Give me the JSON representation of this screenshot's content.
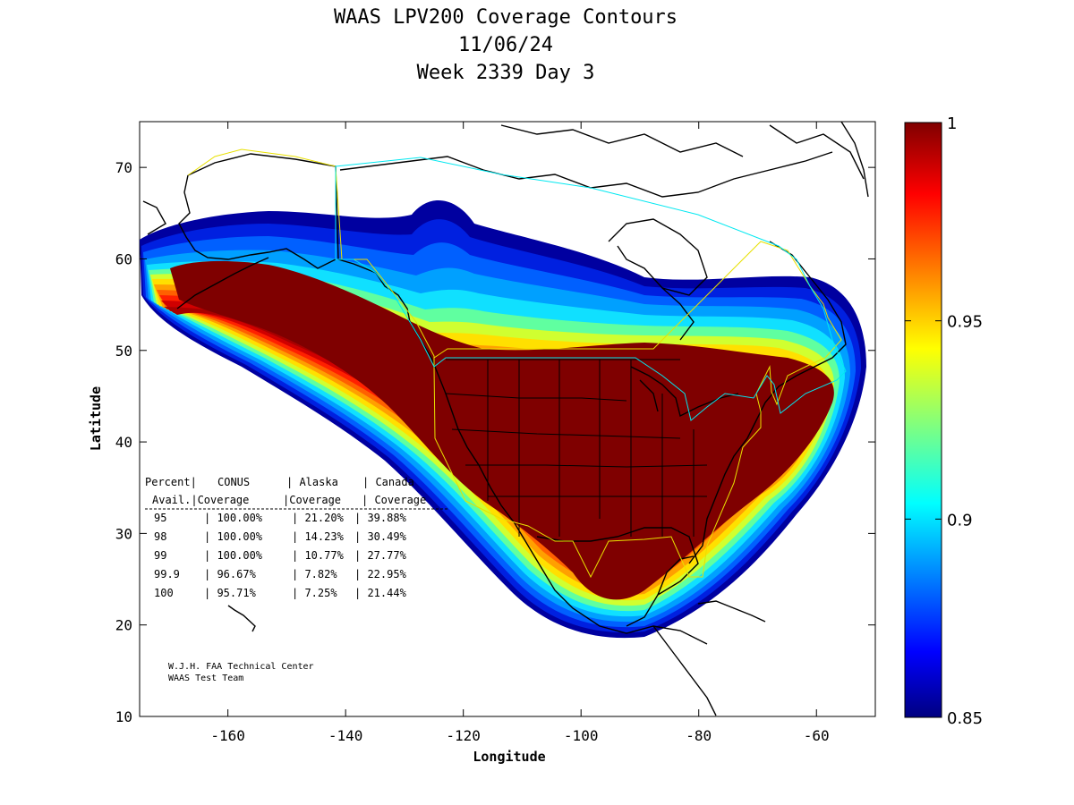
{
  "title": {
    "line1": "WAAS LPV200 Coverage Contours",
    "line2": "11/06/24",
    "line3": "Week 2339 Day 3"
  },
  "axes": {
    "xlabel": "Longitude",
    "ylabel": "Latitude",
    "xlim": [
      -175,
      -50
    ],
    "ylim": [
      10,
      75
    ],
    "xticks": [
      -160,
      -140,
      -120,
      -100,
      -80,
      -60
    ],
    "yticks": [
      10,
      20,
      30,
      40,
      50,
      60,
      70
    ]
  },
  "colorbar": {
    "range": [
      0.85,
      1
    ],
    "ticks": [
      "1",
      "0.95",
      "0.9",
      "0.85"
    ],
    "tick_values": [
      1,
      0.95,
      0.9,
      0.85
    ],
    "colormap": "jet"
  },
  "coverage_table": {
    "header1": [
      "Percent|",
      "CONUS",
      "| Alaska",
      "| Canada"
    ],
    "header2": [
      "Avail.|Coverage",
      "|Coverage",
      "| Coverage"
    ],
    "rows": [
      {
        "pct": "95",
        "conus": "100.00%",
        "alaska": "21.20%",
        "canada": "39.88%"
      },
      {
        "pct": "98",
        "conus": "100.00%",
        "alaska": "14.23%",
        "canada": "30.49%"
      },
      {
        "pct": "99",
        "conus": "100.00%",
        "alaska": "10.77%",
        "canada": "27.77%"
      },
      {
        "pct": "99.9",
        "conus": "96.67%",
        "alaska": "7.82%",
        "canada": "22.95%"
      },
      {
        "pct": "100",
        "conus": "95.71%",
        "alaska": "7.25%",
        "canada": "21.44%"
      }
    ]
  },
  "credit": {
    "line1": "W.J.H. FAA Technical Center",
    "line2": "WAAS Test Team"
  },
  "colors": {
    "band_15": "#7f0000",
    "band_14": "#a80000",
    "band_13": "#d00000",
    "band_12": "#ff2000",
    "band_11": "#ff6000",
    "band_10": "#ffa000",
    "band_9": "#ffe000",
    "band_8": "#d0ff30",
    "band_7": "#60ffa0",
    "band_6": "#10e0ff",
    "band_5": "#00a0ff",
    "band_4": "#0060ff",
    "band_3": "#0020e0",
    "band_2": "#0000a0",
    "service_yellow": "#e8e000",
    "service_cyan": "#00e8f0"
  }
}
